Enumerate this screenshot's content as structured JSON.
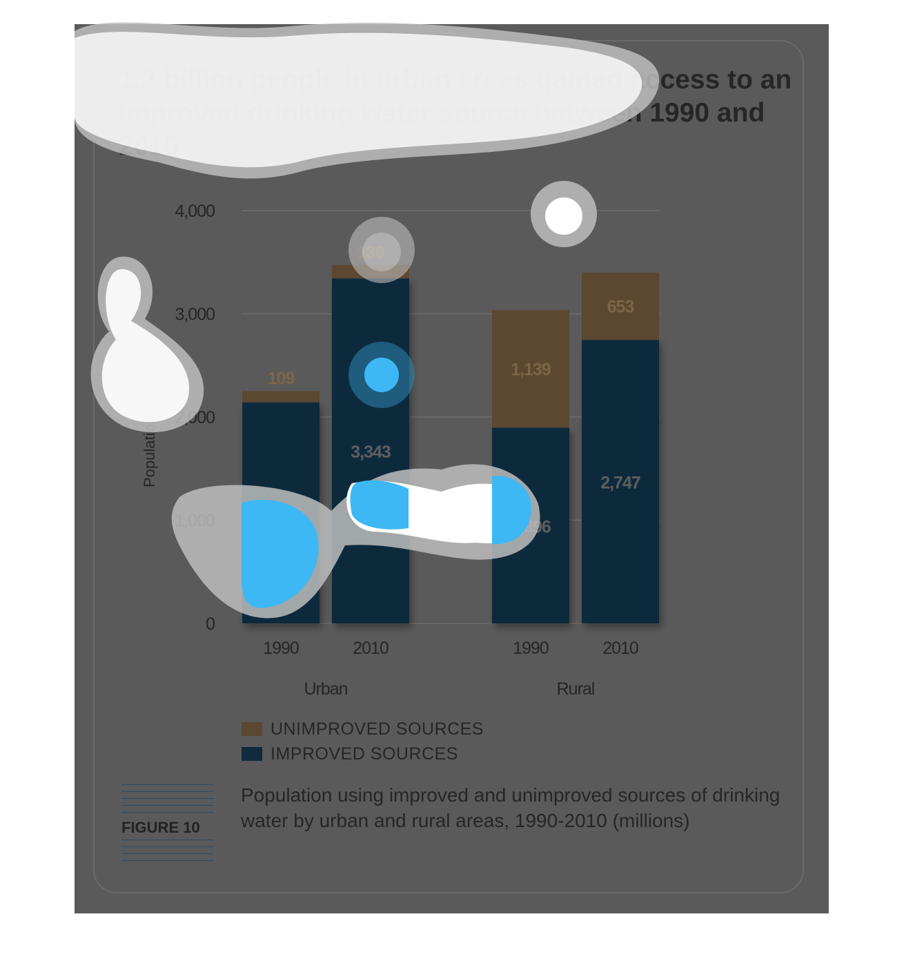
{
  "headline": "1.2 billion people in urban areas gained access to an improved drinking water source between 1990 and 2010",
  "figure_label": "FIGURE 10",
  "caption": "Population using improved and unimproved sources of drinking water by urban and rural areas, 1990-2010 (millions)",
  "legend": [
    {
      "label": "UNIMPROVED SOURCES",
      "color": "#5c4730"
    },
    {
      "label": "IMPROVED SOURCES",
      "color": "#0f2b3c"
    }
  ],
  "colors": {
    "panel": "#5a5a5a",
    "improved": "#0f2b3c",
    "unimproved": "#5c4730",
    "highlight": "#3db8f5",
    "text": "#262626"
  },
  "chart_data": {
    "type": "bar",
    "stacked": true,
    "ylabel": "Population (millions)",
    "ylim": [
      0,
      4000
    ],
    "yticks": [
      "0",
      "1,000",
      "2,000",
      "3,000",
      "4,000"
    ],
    "grid": true,
    "groups": [
      {
        "name": "Urban",
        "bars": [
          {
            "year": "1990",
            "improved": 2142,
            "unimproved": 109,
            "improved_label": "2,142",
            "unimproved_label": "109"
          },
          {
            "year": "2010",
            "improved": 3343,
            "unimproved": 130,
            "improved_label": "3,343",
            "unimproved_label": "130"
          }
        ]
      },
      {
        "name": "Rural",
        "bars": [
          {
            "year": "1990",
            "improved": 1896,
            "unimproved": 1139,
            "improved_label": "1,896",
            "unimproved_label": "1,139"
          },
          {
            "year": "2010",
            "improved": 2747,
            "unimproved": 653,
            "improved_label": "2,747",
            "unimproved_label": "653"
          }
        ]
      }
    ]
  }
}
